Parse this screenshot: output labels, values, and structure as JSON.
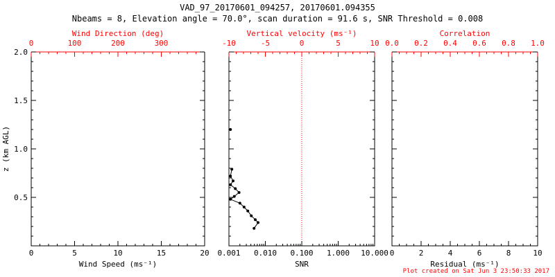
{
  "header": {
    "title": "VAD_97_20170601_094257, 20170601.094355",
    "subtitle": "Nbeams = 8, Elevation angle = 70.0°, scan duration = 91.6 s, SNR Threshold = 0.008"
  },
  "footer": {
    "created": "Plot created on Sat Jun 3 23:50:33 2017"
  },
  "colors": {
    "frame": "#000000",
    "top_axis": "#ff0000",
    "data": "#000000",
    "refline": "#ff0000",
    "stamp": "#ff0000"
  },
  "chart_data": [
    {
      "type": "line",
      "name": "wind-speed-panel",
      "bottom_axis": {
        "label": "Wind Speed (ms⁻¹)",
        "scale": "linear",
        "min": 0,
        "max": 20,
        "ticks": [
          0,
          5,
          10,
          15,
          20
        ],
        "tick_labels": [
          "0",
          "5",
          "10",
          "15",
          "20"
        ],
        "minor_step": 1
      },
      "top_axis": {
        "label": "Wind Direction (deg)",
        "scale": "linear",
        "min": 0,
        "max": 400,
        "ticks": [
          0,
          100,
          200,
          300
        ],
        "tick_labels": [
          "0",
          "100",
          "200",
          "300"
        ],
        "minor_step": 20
      },
      "y_axis": {
        "label": "z (km AGL)",
        "min": 0,
        "max": 2.0,
        "ticks": [
          0.5,
          1.0,
          1.5,
          2.0
        ],
        "tick_labels": [
          "0.5",
          "1.0",
          "1.5",
          "2.0"
        ],
        "minor_step": 0.1,
        "show_labels": true
      },
      "series": []
    },
    {
      "type": "line",
      "name": "snr-panel",
      "bottom_axis": {
        "label": "SNR",
        "scale": "log",
        "min": 0.001,
        "max": 10.0,
        "ticks": [
          0.001,
          0.01,
          0.1,
          1.0,
          10.0
        ],
        "tick_labels": [
          "0.001",
          "0.010",
          "0.100",
          "1.000",
          "10.000"
        ]
      },
      "top_axis": {
        "label": "Vertical velocity (ms⁻¹)",
        "scale": "linear",
        "min": -10,
        "max": 10,
        "ticks": [
          -10,
          -5,
          0,
          5,
          10
        ],
        "tick_labels": [
          "-10",
          "-5",
          "0",
          "5",
          "10"
        ],
        "minor_step": 1
      },
      "y_axis": {
        "min": 0,
        "max": 2.0,
        "ticks": [
          0.5,
          1.0,
          1.5,
          2.0
        ],
        "tick_labels": [
          "0.5",
          "1.0",
          "1.5",
          "2.0"
        ],
        "minor_step": 0.1,
        "show_labels": false
      },
      "ref_line": {
        "x": 0.1,
        "color": "#ff0000",
        "style": "dotted"
      },
      "series": [
        {
          "name": "snr-profile",
          "x_field": "SNR",
          "y_field": "z (km AGL)",
          "segments": [
            [
              [
                0.0011,
                1.2
              ]
            ],
            [
              [
                0.0012,
                0.79
              ],
              [
                0.0011,
                0.72
              ],
              [
                0.0013,
                0.67
              ],
              [
                0.0011,
                0.63
              ],
              [
                0.0015,
                0.59
              ],
              [
                0.0019,
                0.55
              ],
              [
                0.0014,
                0.51
              ],
              [
                0.0011,
                0.48
              ],
              [
                0.002,
                0.44
              ],
              [
                0.0026,
                0.4
              ],
              [
                0.0033,
                0.36
              ],
              [
                0.0041,
                0.31
              ],
              [
                0.0053,
                0.27
              ],
              [
                0.0063,
                0.24
              ],
              [
                0.0049,
                0.18
              ]
            ]
          ]
        }
      ]
    },
    {
      "type": "line",
      "name": "residual-panel",
      "bottom_axis": {
        "label": "Residual (ms⁻¹)",
        "scale": "linear",
        "min": 0,
        "max": 10,
        "ticks": [
          0,
          2,
          4,
          6,
          8,
          10
        ],
        "tick_labels": [
          "0",
          "2",
          "4",
          "6",
          "8",
          "10"
        ],
        "minor_step": 0.5
      },
      "top_axis": {
        "label": "Correlation",
        "scale": "linear",
        "min": 0.0,
        "max": 1.0,
        "ticks": [
          0.0,
          0.2,
          0.4,
          0.6,
          0.8,
          1.0
        ],
        "tick_labels": [
          "0.0",
          "0.2",
          "0.4",
          "0.6",
          "0.8",
          "1.0"
        ],
        "minor_step": 0.05
      },
      "y_axis": {
        "min": 0,
        "max": 2.0,
        "ticks": [
          0.5,
          1.0,
          1.5,
          2.0
        ],
        "tick_labels": [
          "0.5",
          "1.0",
          "1.5",
          "2.0"
        ],
        "minor_step": 0.1,
        "show_labels": false
      },
      "series": []
    }
  ]
}
